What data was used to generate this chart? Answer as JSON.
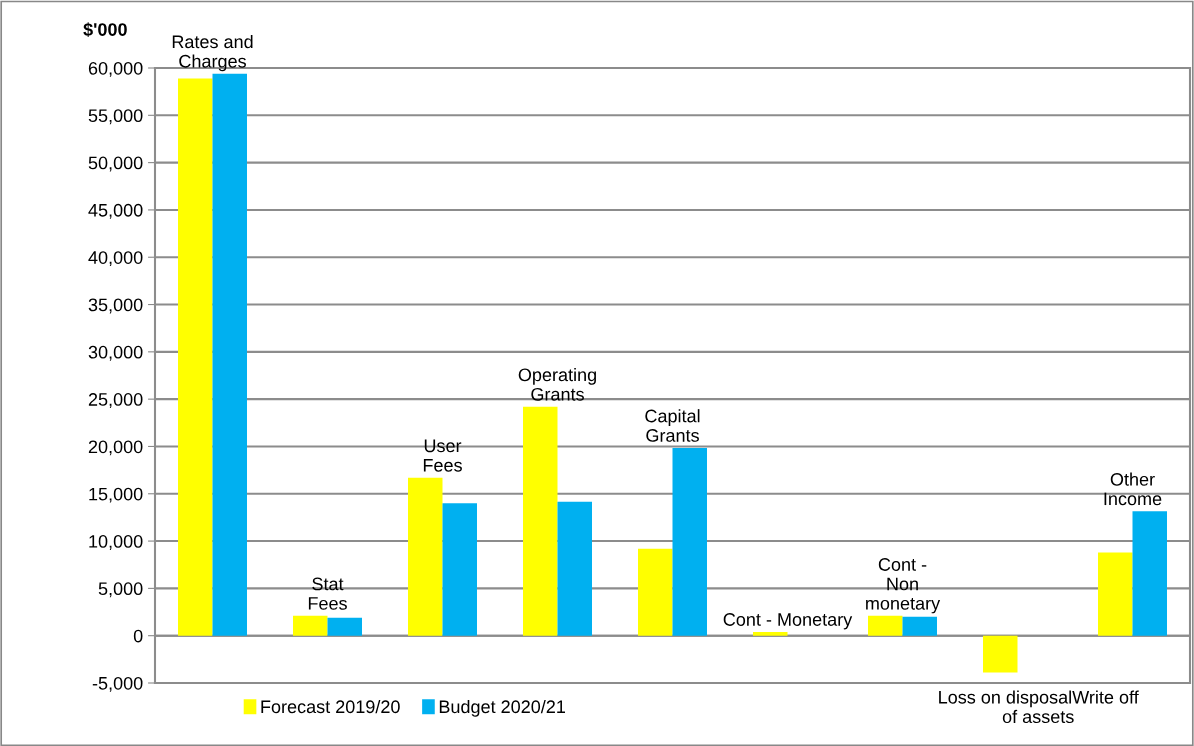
{
  "chart_data": {
    "type": "bar",
    "ylabel": "$'000",
    "categories": [
      "Rates and\nCharges",
      "Stat\nFees",
      "User\nFees",
      "Operating\nGrants",
      "Capital\nGrants",
      "Cont - Monetary",
      "Cont -\nNon\nmonetary",
      "Loss on disposalWrite off\nof assets",
      "Other\nIncome"
    ],
    "series": [
      {
        "name": "Forecast 2019/20",
        "color": "#ffff00",
        "values": [
          58900,
          2100,
          16700,
          24200,
          9200,
          400,
          2100,
          -3900,
          8800
        ]
      },
      {
        "name": "Budget 2020/21",
        "color": "#00b0f0",
        "values": [
          59400,
          1900,
          14000,
          14150,
          19850,
          null,
          2000,
          null,
          13150
        ]
      }
    ],
    "ylim": [
      -5000,
      60000
    ],
    "yticks": [
      {
        "value": -5000,
        "label": "-5,000"
      },
      0,
      {
        "value": 5000,
        "label": "5,000"
      },
      {
        "value": 10000,
        "label": "10,000"
      },
      {
        "value": 15000,
        "label": "15,000"
      },
      {
        "value": 20000,
        "label": "20,000"
      },
      {
        "value": 25000,
        "label": "25,000"
      },
      {
        "value": 30000,
        "label": "30,000"
      },
      {
        "value": 35000,
        "label": "35,000"
      },
      {
        "value": 40000,
        "label": "40,000"
      },
      {
        "value": 45000,
        "label": "45,000"
      },
      {
        "value": 50000,
        "label": "50,000"
      },
      {
        "value": 55000,
        "label": "55,000"
      },
      {
        "value": 60000,
        "label": "60,000"
      }
    ],
    "grid": "y",
    "legend": "bottom left",
    "tick_labels": "y"
  }
}
